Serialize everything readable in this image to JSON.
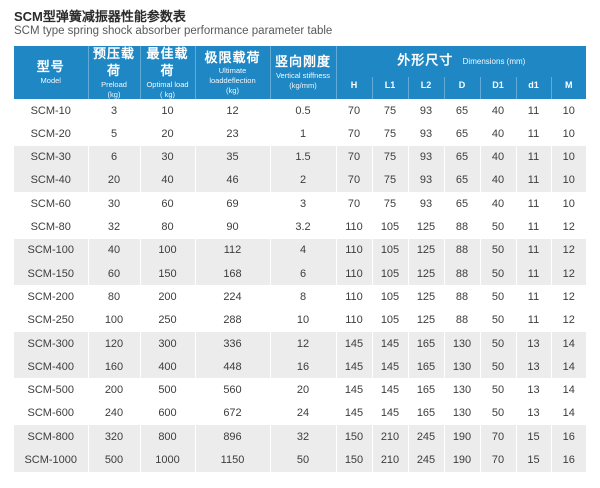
{
  "page": {
    "title_zh": "SCM型弹簧减振器性能参数表",
    "title_en": "SCM type spring shock absorber performance parameter table"
  },
  "colors": {
    "header_blue": "#1e87c4",
    "alt_row_gray": "#ececec",
    "body_text": "#3d3d3d",
    "title_text": "#2b2b2b",
    "subtitle_text": "#595959"
  },
  "table": {
    "columns": [
      {
        "zh": "型号",
        "en": "Model",
        "unit": ""
      },
      {
        "zh": "预压载荷",
        "en": "Preload",
        "unit": "(kg)"
      },
      {
        "zh": "最佳载荷",
        "en": "Optimal load",
        "unit": "( kg)"
      },
      {
        "zh": "极限载荷",
        "en": "Ultimate loaddeflection",
        "unit": "(kg)"
      },
      {
        "zh": "竖向刚度",
        "en": "Vertical stiffness",
        "unit": "(kg/mm)"
      }
    ],
    "dims": {
      "zh": "外形尺寸",
      "en": "Dimensions (mm)",
      "sub": [
        "H",
        "L1",
        "L2",
        "D",
        "D1",
        "d1",
        "M"
      ]
    },
    "rows": [
      [
        "SCM-10",
        "3",
        "10",
        "12",
        "0.5",
        "70",
        "75",
        "93",
        "65",
        "40",
        "11",
        "10"
      ],
      [
        "SCM-20",
        "5",
        "20",
        "23",
        "1",
        "70",
        "75",
        "93",
        "65",
        "40",
        "11",
        "10"
      ],
      [
        "SCM-30",
        "6",
        "30",
        "35",
        "1.5",
        "70",
        "75",
        "93",
        "65",
        "40",
        "11",
        "10"
      ],
      [
        "SCM-40",
        "20",
        "40",
        "46",
        "2",
        "70",
        "75",
        "93",
        "65",
        "40",
        "11",
        "10"
      ],
      [
        "SCM-60",
        "30",
        "60",
        "69",
        "3",
        "70",
        "75",
        "93",
        "65",
        "40",
        "11",
        "10"
      ],
      [
        "SCM-80",
        "32",
        "80",
        "90",
        "3.2",
        "110",
        "105",
        "125",
        "88",
        "50",
        "11",
        "12"
      ],
      [
        "SCM-100",
        "40",
        "100",
        "112",
        "4",
        "110",
        "105",
        "125",
        "88",
        "50",
        "11",
        "12"
      ],
      [
        "SCM-150",
        "60",
        "150",
        "168",
        "6",
        "110",
        "105",
        "125",
        "88",
        "50",
        "11",
        "12"
      ],
      [
        "SCM-200",
        "80",
        "200",
        "224",
        "8",
        "110",
        "105",
        "125",
        "88",
        "50",
        "11",
        "12"
      ],
      [
        "SCM-250",
        "100",
        "250",
        "288",
        "10",
        "110",
        "105",
        "125",
        "88",
        "50",
        "11",
        "12"
      ],
      [
        "SCM-300",
        "120",
        "300",
        "336",
        "12",
        "145",
        "145",
        "165",
        "130",
        "50",
        "13",
        "14"
      ],
      [
        "SCM-400",
        "160",
        "400",
        "448",
        "16",
        "145",
        "145",
        "165",
        "130",
        "50",
        "13",
        "14"
      ],
      [
        "SCM-500",
        "200",
        "500",
        "560",
        "20",
        "145",
        "145",
        "165",
        "130",
        "50",
        "13",
        "14"
      ],
      [
        "SCM-600",
        "240",
        "600",
        "672",
        "24",
        "145",
        "145",
        "165",
        "130",
        "50",
        "13",
        "14"
      ],
      [
        "SCM-800",
        "320",
        "800",
        "896",
        "32",
        "150",
        "210",
        "245",
        "190",
        "70",
        "15",
        "16"
      ],
      [
        "SCM-1000",
        "500",
        "1000",
        "1150",
        "50",
        "150",
        "210",
        "245",
        "190",
        "70",
        "15",
        "16"
      ]
    ]
  }
}
